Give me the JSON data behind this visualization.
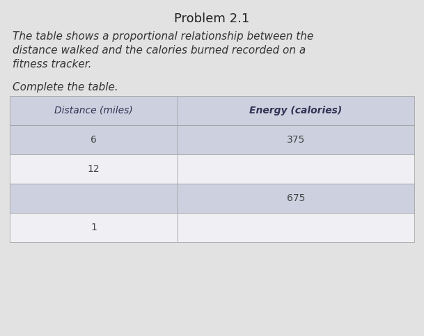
{
  "title": "Problem 2.1",
  "paragraph_line1": "The table shows a proportional relationship between the",
  "paragraph_line2": "distance walked and the calories burned recorded on a",
  "paragraph_line3": "fitness tracker.",
  "instruction": "Complete the table.",
  "col1_header": "Distance (miles)",
  "col2_header": "Energy (calories)",
  "rows": [
    {
      "col1": "6",
      "col2": "375",
      "bg": "blue"
    },
    {
      "col1": "12",
      "col2": "",
      "bg": "white"
    },
    {
      "col1": "",
      "col2": "675",
      "bg": "blue"
    },
    {
      "col1": "1",
      "col2": "",
      "bg": "white"
    }
  ],
  "bg_color": "#cdd1df",
  "white_color": "#f0f0f4",
  "page_bg": "#e2e2e2",
  "title_fontsize": 13,
  "body_fontsize": 11,
  "table_fontsize": 10,
  "header_text_color": "#333355",
  "body_text_color": "#333333",
  "table_text_color": "#444444"
}
